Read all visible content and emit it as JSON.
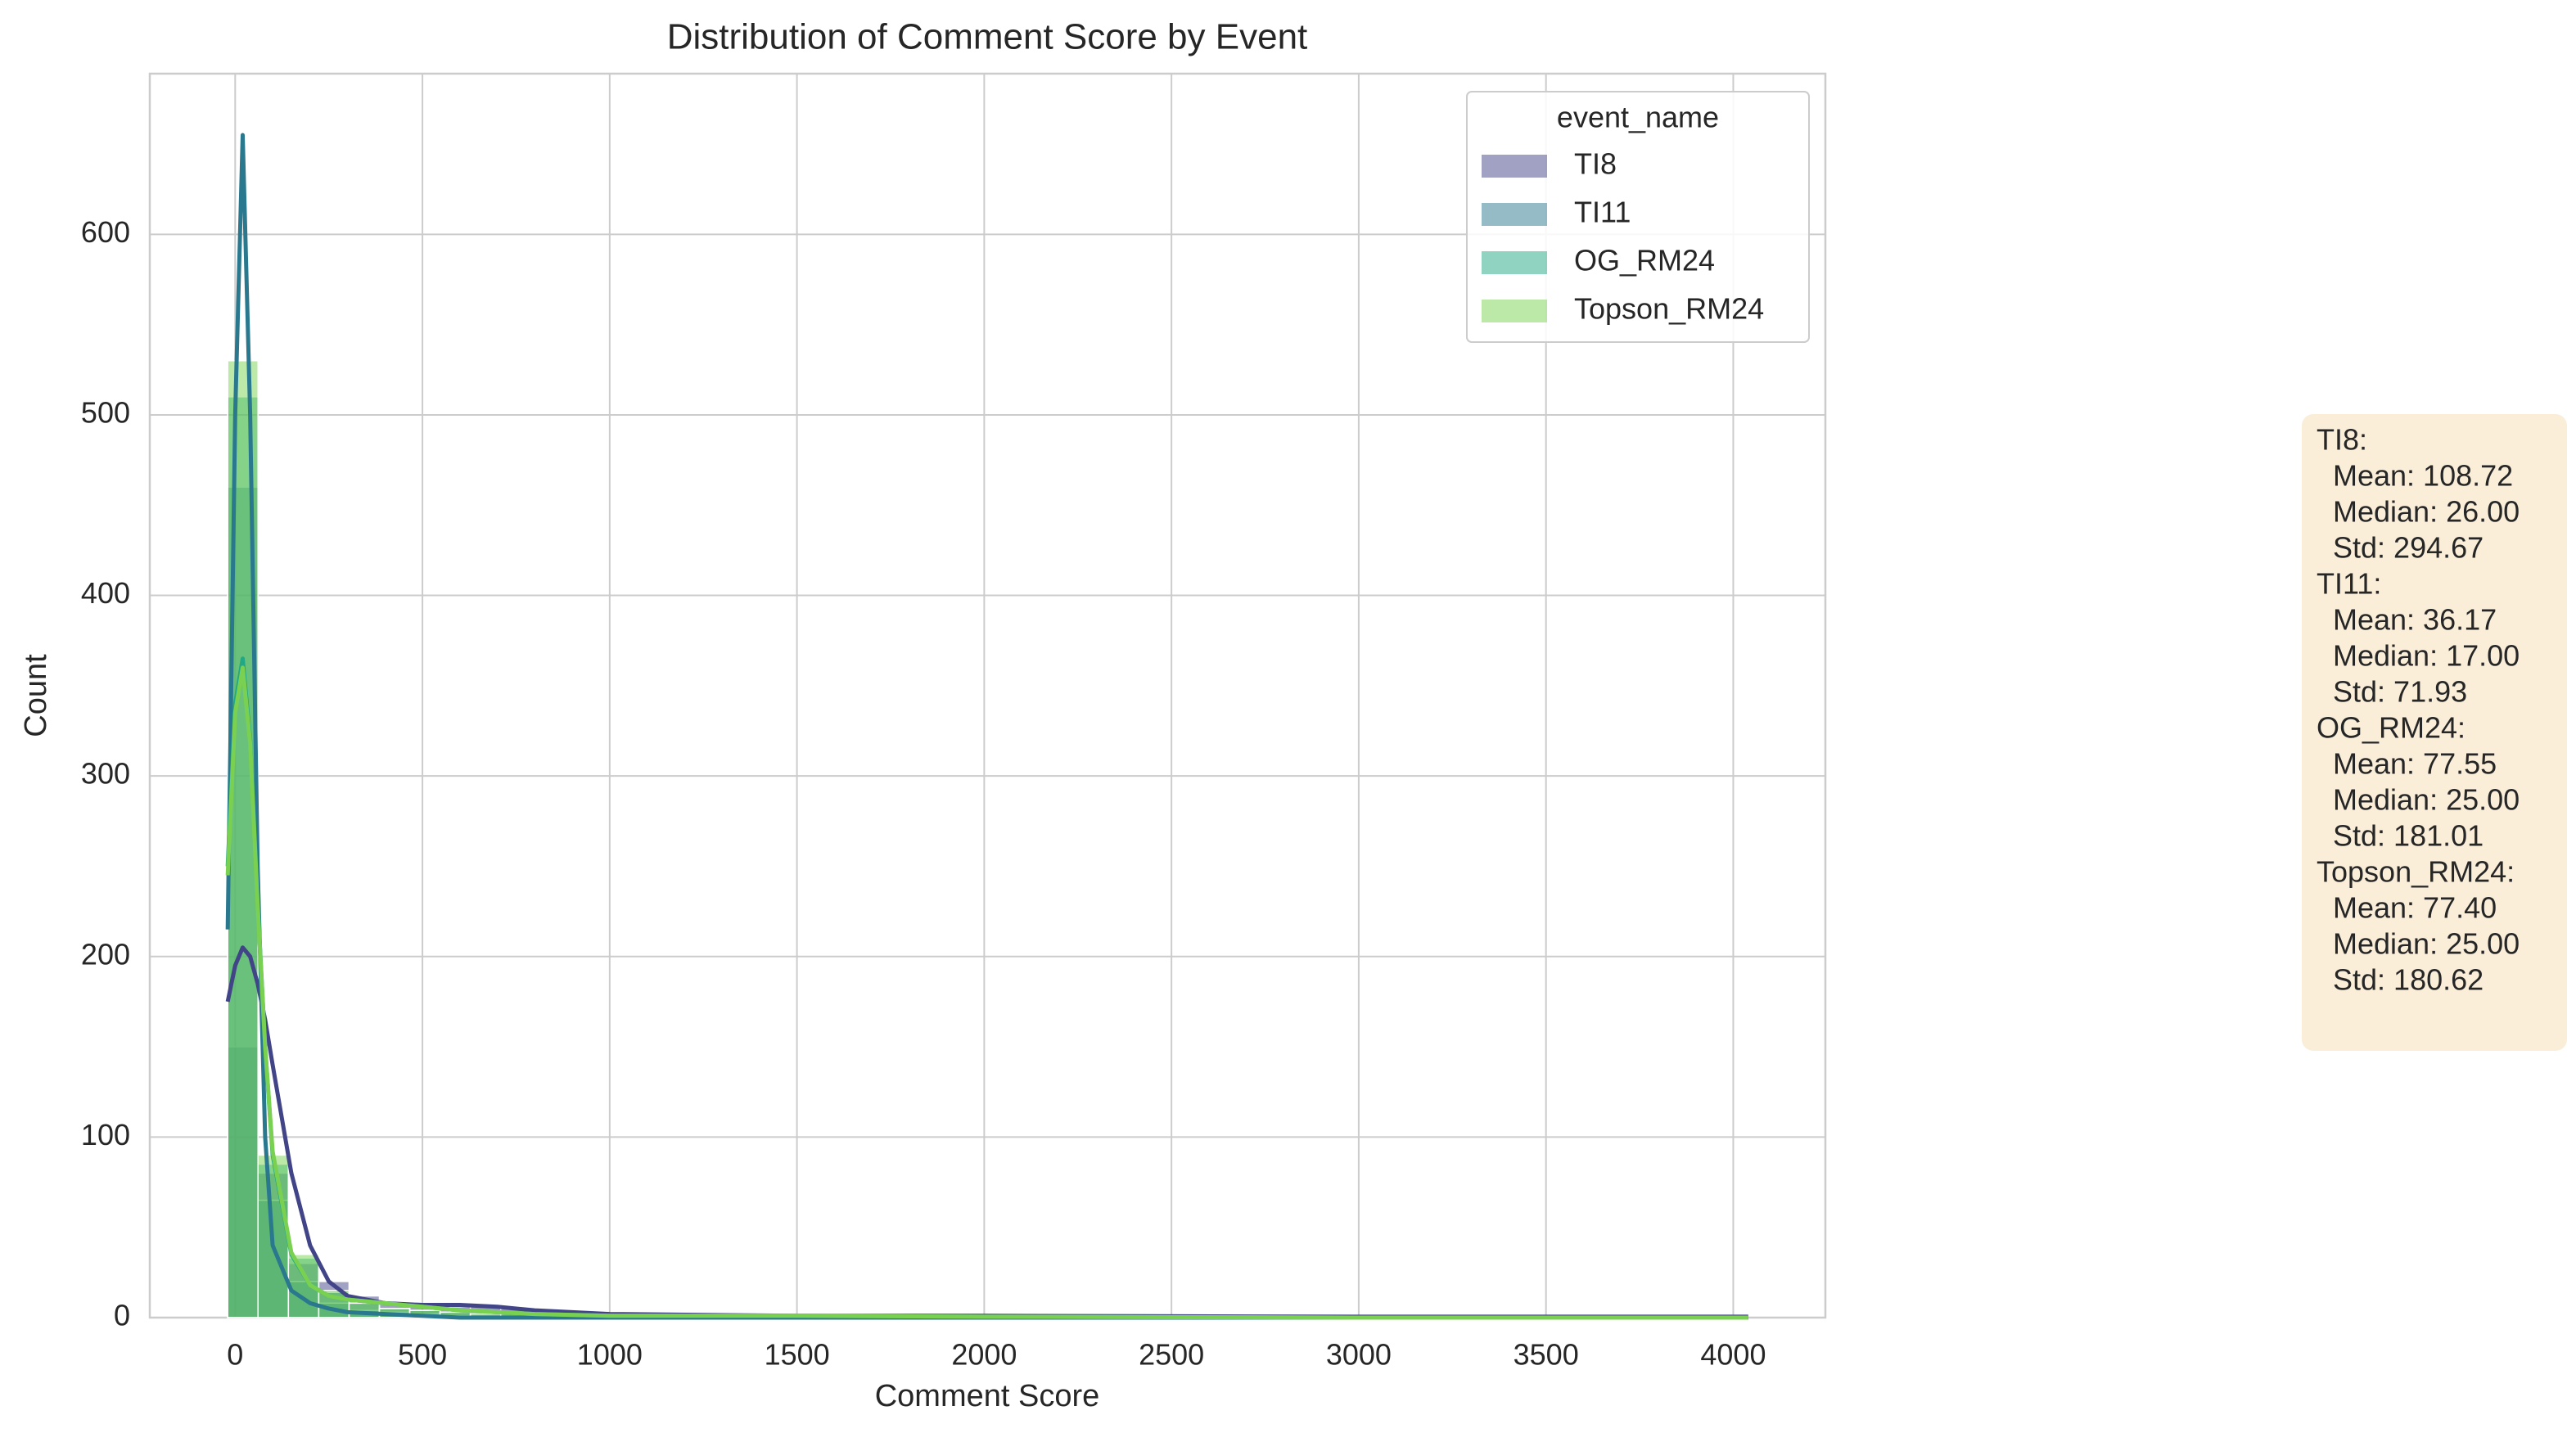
{
  "chart_data": {
    "type": "histogram",
    "title": "Distribution of Comment Score by Event",
    "xlabel": "Comment Score",
    "ylabel": "Count",
    "bins": [
      -20,
      61,
      142,
      223,
      304,
      385,
      466,
      547,
      628,
      709,
      790,
      871,
      952,
      1033,
      1114,
      1195,
      1276,
      1357,
      1438,
      1519,
      1600,
      1681,
      1762,
      1843,
      1924,
      2005,
      2086,
      2167,
      2248,
      2329,
      2410,
      2491,
      2572,
      2653,
      2734,
      2815,
      2896,
      2977,
      3058,
      3139,
      3220,
      3301,
      3382,
      3463,
      3544,
      3625,
      3706,
      3787,
      3868,
      3949,
      4030
    ],
    "kde_x": [
      -20,
      0,
      20,
      40,
      60,
      80,
      100,
      150,
      200,
      250,
      300,
      400,
      500,
      600,
      700,
      800,
      1000,
      1500,
      2000,
      3000,
      4040
    ],
    "series": [
      {
        "name": "TI8",
        "color": "#414487",
        "values": [
          150,
          80,
          30,
          20,
          12,
          8,
          7,
          6,
          6,
          5,
          3,
          2,
          1,
          1,
          0,
          1,
          0,
          0,
          0,
          0,
          0,
          0,
          0,
          0,
          0,
          0,
          0,
          0,
          0,
          1,
          0,
          0,
          0,
          0,
          0,
          0,
          0,
          0,
          0,
          0,
          0,
          0,
          0,
          0,
          0,
          0,
          0,
          0,
          0,
          1
        ],
        "kde": [
          175,
          195,
          205,
          200,
          185,
          165,
          140,
          80,
          40,
          20,
          12,
          8,
          7,
          7,
          6,
          4,
          2,
          1,
          1,
          0.5,
          0.5
        ]
      },
      {
        "name": "TI11",
        "color": "#2a788e",
        "values": [
          460,
          65,
          20,
          8,
          4,
          3,
          2,
          1,
          1,
          0,
          0,
          0,
          0,
          0,
          0,
          0,
          0,
          0,
          0,
          0,
          0,
          0,
          0,
          0,
          0,
          0,
          0,
          0,
          0,
          0,
          0,
          0,
          0,
          0,
          0,
          0,
          0,
          0,
          0,
          0,
          0,
          0,
          0,
          0,
          0,
          0,
          0,
          0,
          0,
          0
        ],
        "kde": [
          215,
          500,
          655,
          500,
          250,
          100,
          40,
          15,
          8,
          5,
          3,
          2,
          1,
          0,
          0,
          0,
          0,
          0,
          0,
          0,
          0
        ]
      },
      {
        "name": "OG_RM24",
        "color": "#22a884",
        "values": [
          510,
          85,
          33,
          14,
          8,
          5,
          4,
          3,
          2,
          2,
          1,
          1,
          0,
          0,
          0,
          0,
          0,
          0,
          1,
          0,
          0,
          0,
          0,
          0,
          0,
          0,
          0,
          0,
          0,
          0,
          0,
          0,
          0,
          0,
          0,
          0,
          0,
          0,
          0,
          0,
          0,
          0,
          0,
          0,
          0,
          0,
          0,
          0,
          0,
          0
        ],
        "kde": [
          250,
          340,
          365,
          320,
          230,
          150,
          90,
          35,
          18,
          12,
          10,
          8,
          6,
          4,
          3,
          2,
          1,
          1,
          0.5,
          0,
          0
        ]
      },
      {
        "name": "Topson_RM24",
        "color": "#7ad151",
        "values": [
          530,
          90,
          35,
          15,
          8,
          5,
          4,
          3,
          2,
          2,
          1,
          1,
          1,
          0,
          0,
          0,
          0,
          0,
          1,
          0,
          0,
          0,
          0,
          0,
          0,
          0,
          0,
          0,
          0,
          0,
          0,
          0,
          0,
          0,
          0,
          0,
          0,
          0,
          0,
          0,
          0,
          0,
          0,
          0,
          0,
          0,
          0,
          0,
          0,
          0
        ],
        "kde": [
          245,
          335,
          360,
          318,
          228,
          150,
          92,
          36,
          18,
          12,
          10,
          8,
          6,
          4,
          3,
          2,
          1,
          1,
          0.5,
          0,
          0
        ]
      }
    ],
    "xlim": [
      -228,
      4246
    ],
    "ylim": [
      0,
      689
    ],
    "xticks": [
      0,
      500,
      1000,
      1500,
      2000,
      2500,
      3000,
      3500,
      4000
    ],
    "yticks": [
      0,
      100,
      200,
      300,
      400,
      500,
      600
    ],
    "grid": true,
    "legend_title": "event_name",
    "legend_loc": "upper right",
    "annotation": [
      "TI8:",
      "  Mean: 108.72",
      "  Median: 26.00",
      "  Std: 294.67",
      "TI11:",
      "  Mean: 36.17",
      "  Median: 17.00",
      "  Std: 71.93",
      "OG_RM24:",
      "  Mean: 77.55",
      "  Median: 25.00",
      "  Std: 181.01",
      "Topson_RM24:",
      "  Mean: 77.40",
      "  Median: 25.00",
      "  Std: 180.62"
    ]
  }
}
